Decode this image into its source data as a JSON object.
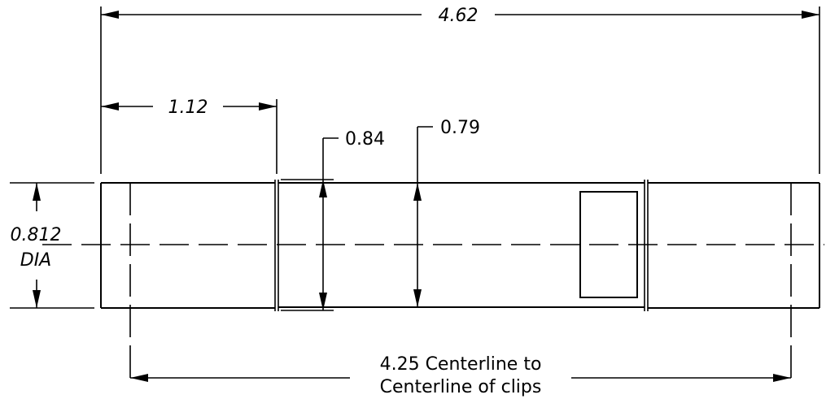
{
  "dimensions": {
    "overall_length": "4.62",
    "left_section_length": "1.12",
    "groove_diameter": "0.84",
    "shaft_diameter": "0.79",
    "body_diameter": "0.812",
    "body_diameter_note": "DIA",
    "clip_spacing_line1": "4.25 Centerline to",
    "clip_spacing_line2": "Centerline of clips"
  }
}
